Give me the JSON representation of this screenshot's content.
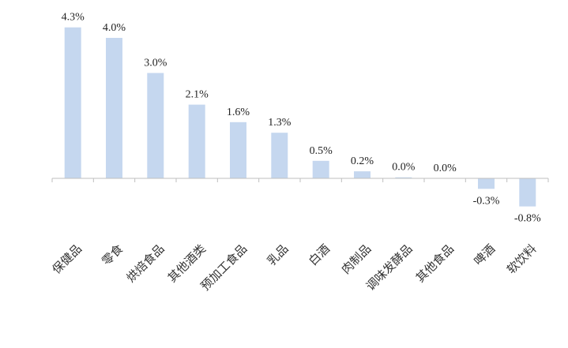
{
  "chart_data": {
    "type": "bar",
    "categories": [
      "保健品",
      "零食",
      "烘焙食品",
      "其他酒类",
      "预加工食品",
      "乳品",
      "白酒",
      "肉制品",
      "调味发酵品",
      "其他食品",
      "啤酒",
      "软饮料"
    ],
    "values": [
      4.3,
      4.0,
      3.0,
      2.1,
      1.6,
      1.3,
      0.5,
      0.2,
      0.0,
      0.0,
      -0.3,
      -0.8
    ],
    "value_labels": [
      "4.3%",
      "4.0%",
      "3.0%",
      "2.1%",
      "1.6%",
      "1.3%",
      "0.5%",
      "0.2%",
      "0.0%",
      "0.0%",
      "-0.3%",
      "-0.8%"
    ],
    "raw_values": [
      4.3,
      4.0,
      3.0,
      2.1,
      1.6,
      1.3,
      0.5,
      0.2,
      0.03,
      0.0,
      -0.3,
      -0.8
    ],
    "title": "",
    "xlabel": "",
    "ylabel": "",
    "ylim": [
      -0.8,
      4.3
    ],
    "grid": false,
    "legend": "none",
    "bar_color": "#c5d7ef",
    "axis_color": "#bfbfbf"
  }
}
